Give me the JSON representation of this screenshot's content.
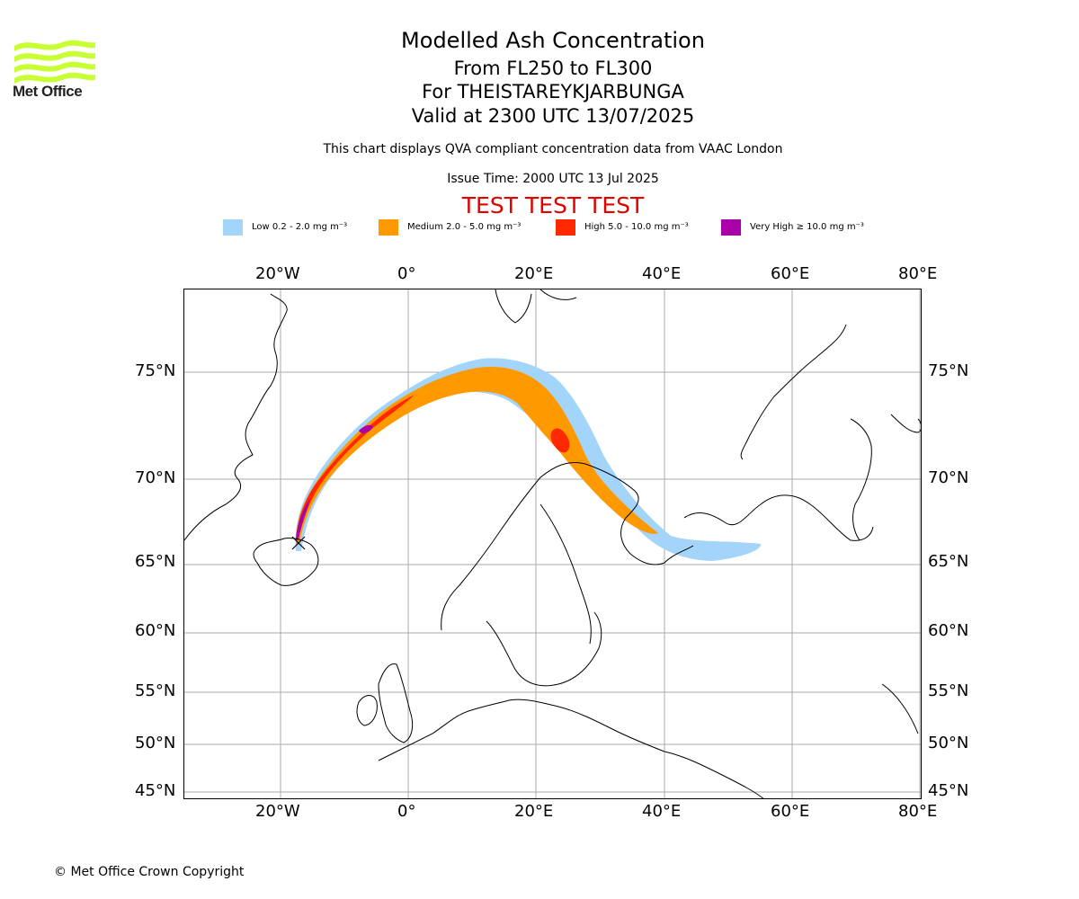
{
  "logo": {
    "text": "Met Office",
    "colors": {
      "waves": "#c8ff32",
      "text": "#222222"
    }
  },
  "header": {
    "title": "Modelled Ash Concentration",
    "level_range": "From FL250 to FL300",
    "volcano": "For THEISTAREYKJARBUNGA",
    "valid_time": "Valid at 2300 UTC 13/07/2025",
    "description": "This chart displays QVA compliant concentration data from VAAC London",
    "issue_time": "Issue Time: 2000 UTC 13 Jul 2025",
    "test_banner": "TEST TEST TEST"
  },
  "legend": [
    {
      "label": "Low 0.2 - 2.0 mg m⁻³",
      "color": "#a3d4fa"
    },
    {
      "label": "Medium 2.0 - 5.0 mg m⁻³",
      "color": "#ff9900"
    },
    {
      "label": "High 5.0 - 10.0 mg m⁻³",
      "color": "#ff2800"
    },
    {
      "label": "Very High ≥ 10.0 mg m⁻³",
      "color": "#aa00aa"
    }
  ],
  "map": {
    "longitude_labels": [
      "20°W",
      "0°",
      "20°E",
      "40°E",
      "60°E",
      "80°E"
    ],
    "latitude_labels": [
      "75°N",
      "70°N",
      "65°N",
      "60°N",
      "55°N",
      "50°N",
      "45°N"
    ],
    "grid_color": "#aaaaaa",
    "coastline_color": "#000000"
  },
  "footer": {
    "copyright": "© Met Office Crown Copyright"
  }
}
